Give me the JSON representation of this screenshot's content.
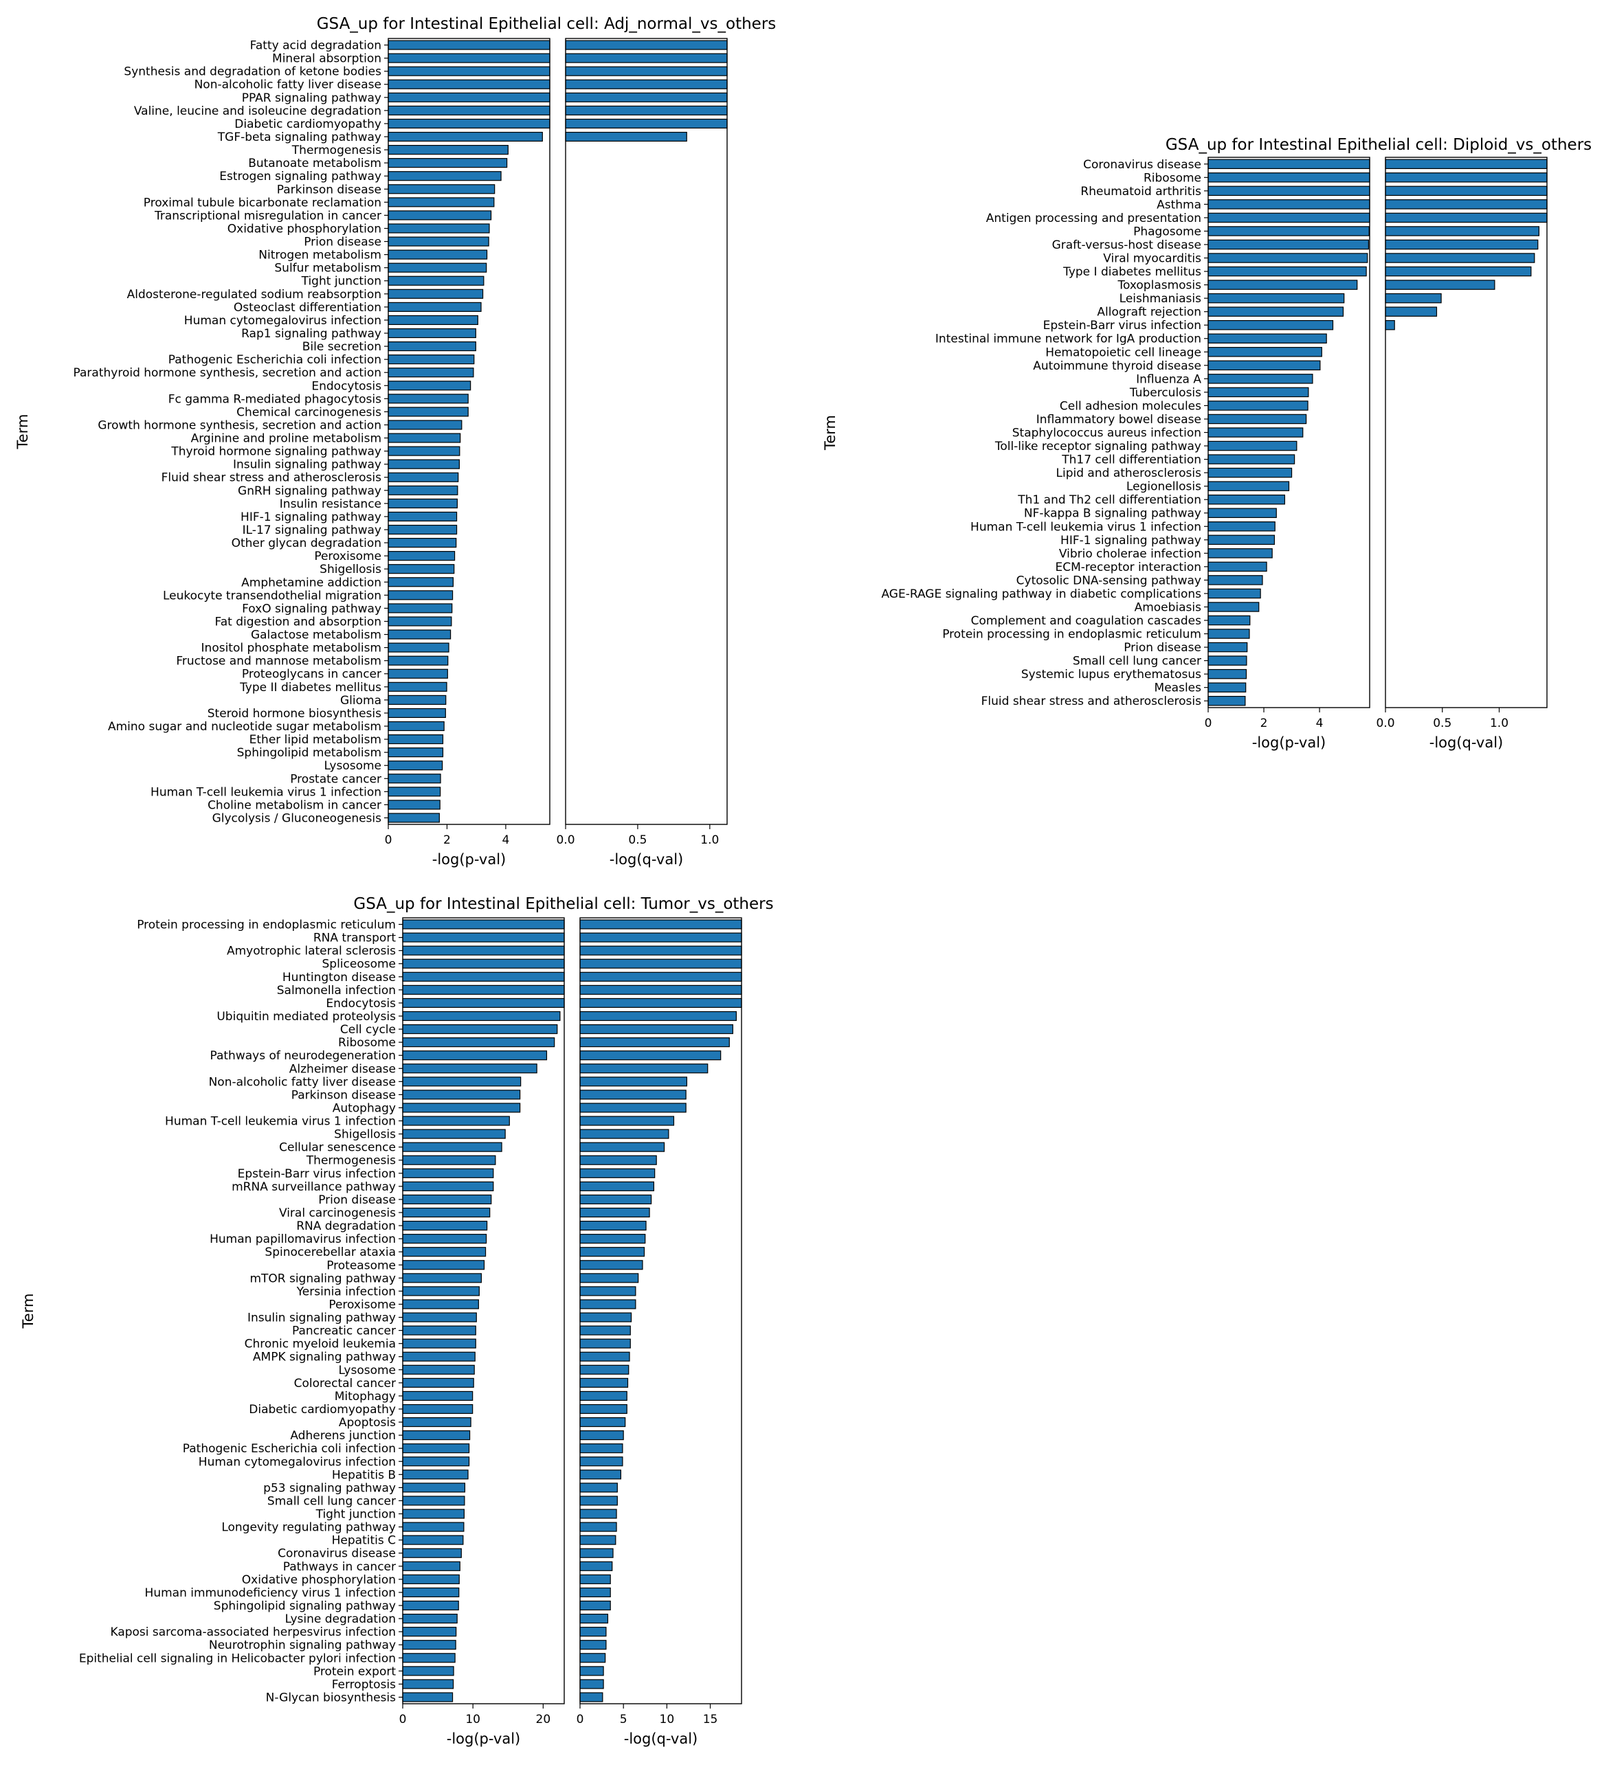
{
  "colors": {
    "bar_fill": "#1f77b4",
    "bar_edge": "#000000"
  },
  "chart_data": [
    {
      "id": "adj",
      "type": "bar",
      "orientation": "horizontal",
      "title": "GSA_up for Intestinal Epithelial cell: Adj_normal_vs_others",
      "ylabel": "Term",
      "panels": [
        {
          "xlabel": "-log(p-val)",
          "xlim": [
            0,
            5.5
          ],
          "ticks": [
            0,
            2,
            4
          ],
          "tick_labels": [
            "0",
            "2",
            "4"
          ]
        },
        {
          "xlabel": "-log(q-val)",
          "xlim": [
            0,
            1.12
          ],
          "ticks": [
            0,
            0.5,
            1.0
          ],
          "tick_labels": [
            "0.0",
            "0.5",
            "1.0"
          ]
        }
      ],
      "categories": [
        "Fatty acid degradation",
        "Mineral absorption",
        "Synthesis and degradation of ketone bodies",
        "Non-alcoholic fatty liver disease",
        "PPAR signaling pathway",
        "Valine, leucine and isoleucine degradation",
        "Diabetic cardiomyopathy",
        "TGF-beta signaling pathway",
        "Thermogenesis",
        "Butanoate metabolism",
        "Estrogen signaling pathway",
        "Parkinson disease",
        "Proximal tubule bicarbonate reclamation",
        "Transcriptional misregulation in cancer",
        "Oxidative phosphorylation",
        "Prion disease",
        "Nitrogen metabolism",
        "Sulfur metabolism",
        "Tight junction",
        "Aldosterone-regulated sodium reabsorption",
        "Osteoclast differentiation",
        "Human cytomegalovirus infection",
        "Rap1 signaling pathway",
        "Bile secretion",
        "Pathogenic Escherichia coli infection",
        "Parathyroid hormone synthesis, secretion and action",
        "Endocytosis",
        "Fc gamma R-mediated phagocytosis",
        "Chemical carcinogenesis",
        "Growth hormone synthesis, secretion and action",
        "Arginine and proline metabolism",
        "Thyroid hormone signaling pathway",
        "Insulin signaling pathway",
        "Fluid shear stress and atherosclerosis",
        "GnRH signaling pathway",
        "Insulin resistance",
        "HIF-1 signaling pathway",
        "IL-17 signaling pathway",
        "Other glycan degradation",
        "Peroxisome",
        "Shigellosis",
        "Amphetamine addiction",
        "Leukocyte transendothelial migration",
        "FoxO signaling pathway",
        "Fat digestion and absorption",
        "Galactose metabolism",
        "Inositol phosphate metabolism",
        "Fructose and mannose metabolism",
        "Proteoglycans in cancer",
        "Type II diabetes mellitus",
        "Glioma",
        "Steroid hormone biosynthesis",
        "Amino sugar and nucleotide sugar metabolism",
        "Ether lipid metabolism",
        "Sphingolipid metabolism",
        "Lysosome",
        "Prostate cancer",
        "Human T-cell leukemia virus 1 infection",
        "Choline metabolism in cancer",
        "Glycolysis / Gluconeogenesis"
      ],
      "series": [
        {
          "values": [
            5.5,
            5.5,
            5.5,
            5.5,
            5.5,
            5.5,
            5.5,
            5.25,
            4.08,
            4.04,
            3.84,
            3.62,
            3.6,
            3.5,
            3.44,
            3.42,
            3.36,
            3.34,
            3.25,
            3.22,
            3.16,
            3.05,
            2.98,
            2.98,
            2.92,
            2.9,
            2.8,
            2.72,
            2.72,
            2.5,
            2.45,
            2.43,
            2.42,
            2.38,
            2.36,
            2.35,
            2.33,
            2.33,
            2.31,
            2.26,
            2.24,
            2.21,
            2.19,
            2.17,
            2.15,
            2.12,
            2.06,
            2.03,
            2.02,
            1.99,
            1.96,
            1.95,
            1.9,
            1.86,
            1.86,
            1.84,
            1.78,
            1.77,
            1.76,
            1.74
          ]
        },
        {
          "values": [
            1.12,
            1.12,
            1.12,
            1.12,
            1.12,
            1.12,
            1.12,
            0.84,
            0,
            0,
            0,
            0,
            0,
            0,
            0,
            0,
            0,
            0,
            0,
            0,
            0,
            0,
            0,
            0,
            0,
            0,
            0,
            0,
            0,
            0,
            0,
            0,
            0,
            0,
            0,
            0,
            0,
            0,
            0,
            0,
            0,
            0,
            0,
            0,
            0,
            0,
            0,
            0,
            0,
            0,
            0,
            0,
            0,
            0,
            0,
            0,
            0,
            0,
            0,
            0
          ]
        }
      ]
    },
    {
      "id": "diploid",
      "type": "bar",
      "orientation": "horizontal",
      "title": "GSA_up for Intestinal Epithelial cell: Diploid_vs_others",
      "ylabel": "Term",
      "panels": [
        {
          "xlabel": "-log(p-val)",
          "xlim": [
            0,
            5.8
          ],
          "ticks": [
            0,
            2,
            4
          ],
          "tick_labels": [
            "0",
            "2",
            "4"
          ]
        },
        {
          "xlabel": "-log(q-val)",
          "xlim": [
            0,
            1.42
          ],
          "ticks": [
            0,
            0.5,
            1.0
          ],
          "tick_labels": [
            "0.0",
            "0.5",
            "1.0"
          ]
        }
      ],
      "categories": [
        "Coronavirus disease",
        "Ribosome",
        "Rheumatoid arthritis",
        "Asthma",
        "Antigen processing and presentation",
        "Phagosome",
        "Graft-versus-host disease",
        "Viral myocarditis",
        "Type I diabetes mellitus",
        "Toxoplasmosis",
        "Leishmaniasis",
        "Allograft rejection",
        "Epstein-Barr virus infection",
        "Intestinal immune network for IgA production",
        "Hematopoietic cell lineage",
        "Autoimmune thyroid disease",
        "Influenza A",
        "Tuberculosis",
        "Cell adhesion molecules",
        "Inflammatory bowel disease",
        "Staphylococcus aureus infection",
        "Toll-like receptor signaling pathway",
        "Th17 cell differentiation",
        "Lipid and atherosclerosis",
        "Legionellosis",
        "Th1 and Th2 cell differentiation",
        "NF-kappa B signaling pathway",
        "Human T-cell leukemia virus 1 infection",
        "HIF-1 signaling pathway",
        "Vibrio cholerae infection",
        "ECM-receptor interaction",
        "Cytosolic DNA-sensing pathway",
        "AGE-RAGE signaling pathway in diabetic complications",
        "Amoebiasis",
        "Complement and coagulation cascades",
        "Protein processing in endoplasmic reticulum",
        "Prion disease",
        "Small cell lung cancer",
        "Systemic lupus erythematosus",
        "Measles",
        "Fluid shear stress and atherosclerosis"
      ],
      "series": [
        {
          "values": [
            5.8,
            5.8,
            5.8,
            5.8,
            5.8,
            5.78,
            5.76,
            5.72,
            5.68,
            5.35,
            4.88,
            4.85,
            4.48,
            4.25,
            4.08,
            4.02,
            3.75,
            3.6,
            3.58,
            3.52,
            3.4,
            3.18,
            3.1,
            3.0,
            2.9,
            2.75,
            2.45,
            2.4,
            2.38,
            2.3,
            2.1,
            1.95,
            1.88,
            1.82,
            1.5,
            1.48,
            1.4,
            1.38,
            1.37,
            1.35,
            1.33
          ]
        },
        {
          "values": [
            1.42,
            1.42,
            1.42,
            1.42,
            1.42,
            1.35,
            1.34,
            1.31,
            1.28,
            0.96,
            0.49,
            0.45,
            0.08,
            0,
            0,
            0,
            0,
            0,
            0,
            0,
            0,
            0,
            0,
            0,
            0,
            0,
            0,
            0,
            0,
            0,
            0,
            0,
            0,
            0,
            0,
            0,
            0,
            0,
            0,
            0,
            0
          ]
        }
      ]
    },
    {
      "id": "tumor",
      "type": "bar",
      "orientation": "horizontal",
      "title": "GSA_up for Intestinal Epithelial cell: Tumor_vs_others",
      "ylabel": "Term",
      "panels": [
        {
          "xlabel": "-log(p-val)",
          "xlim": [
            0,
            23
          ],
          "ticks": [
            0,
            10,
            20
          ],
          "tick_labels": [
            "0",
            "10",
            "20"
          ]
        },
        {
          "xlabel": "-log(q-val)",
          "xlim": [
            0,
            18.6
          ],
          "ticks": [
            0,
            5,
            10,
            15
          ],
          "tick_labels": [
            "0",
            "5",
            "10",
            "15"
          ]
        }
      ],
      "categories": [
        "Protein processing in endoplasmic reticulum",
        "RNA transport",
        "Amyotrophic lateral sclerosis",
        "Spliceosome",
        "Huntington disease",
        "Salmonella infection",
        "Endocytosis",
        "Ubiquitin mediated proteolysis",
        "Cell cycle",
        "Ribosome",
        "Pathways of neurodegeneration",
        "Alzheimer disease",
        "Non-alcoholic fatty liver disease",
        "Parkinson disease",
        "Autophagy",
        "Human T-cell leukemia virus 1 infection",
        "Shigellosis",
        "Cellular senescence",
        "Thermogenesis",
        "Epstein-Barr virus infection",
        "mRNA surveillance pathway",
        "Prion disease",
        "Viral carcinogenesis",
        "RNA degradation",
        "Human papillomavirus infection",
        "Spinocerebellar ataxia",
        "Proteasome",
        "mTOR signaling pathway",
        "Yersinia infection",
        "Peroxisome",
        "Insulin signaling pathway",
        "Pancreatic cancer",
        "Chronic myeloid leukemia",
        "AMPK signaling pathway",
        "Lysosome",
        "Colorectal cancer",
        "Mitophagy",
        "Diabetic cardiomyopathy",
        "Apoptosis",
        "Adherens junction",
        "Pathogenic Escherichia coli infection",
        "Human cytomegalovirus infection",
        "Hepatitis B",
        "p53 signaling pathway",
        "Small cell lung cancer",
        "Tight junction",
        "Longevity regulating pathway",
        "Hepatitis C",
        "Coronavirus disease",
        "Pathways in cancer",
        "Oxidative phosphorylation",
        "Human immunodeficiency virus 1 infection",
        "Sphingolipid signaling pathway",
        "Lysine degradation",
        "Kaposi sarcoma-associated herpesvirus infection",
        "Neurotrophin signaling pathway",
        "Epithelial cell signaling in Helicobacter pylori infection",
        "Protein export",
        "Ferroptosis",
        "N-Glycan biosynthesis"
      ],
      "series": [
        {
          "values": [
            23,
            23,
            23,
            23,
            23,
            23,
            23,
            22.4,
            22,
            21.6,
            20.5,
            19.1,
            16.8,
            16.7,
            16.7,
            15.2,
            14.6,
            14.1,
            13.2,
            12.9,
            12.9,
            12.6,
            12.4,
            12.0,
            11.9,
            11.8,
            11.6,
            11.2,
            10.9,
            10.8,
            10.5,
            10.4,
            10.4,
            10.3,
            10.2,
            10.1,
            9.95,
            9.95,
            9.7,
            9.55,
            9.45,
            9.45,
            9.3,
            8.85,
            8.8,
            8.75,
            8.7,
            8.6,
            8.35,
            8.15,
            8.05,
            8.0,
            7.95,
            7.75,
            7.6,
            7.55,
            7.45,
            7.25,
            7.2,
            7.1
          ]
        },
        {
          "values": [
            18.6,
            18.6,
            18.6,
            18.6,
            18.6,
            18.6,
            18.6,
            18.0,
            17.6,
            17.2,
            16.2,
            14.7,
            12.3,
            12.2,
            12.2,
            10.8,
            10.2,
            9.7,
            8.8,
            8.6,
            8.5,
            8.2,
            8.0,
            7.6,
            7.5,
            7.4,
            7.2,
            6.7,
            6.4,
            6.4,
            5.9,
            5.8,
            5.8,
            5.7,
            5.6,
            5.5,
            5.4,
            5.4,
            5.2,
            5.0,
            4.9,
            4.9,
            4.7,
            4.3,
            4.3,
            4.2,
            4.2,
            4.1,
            3.8,
            3.7,
            3.5,
            3.5,
            3.5,
            3.2,
            3.0,
            3.0,
            2.9,
            2.7,
            2.7,
            2.6
          ]
        }
      ]
    }
  ]
}
